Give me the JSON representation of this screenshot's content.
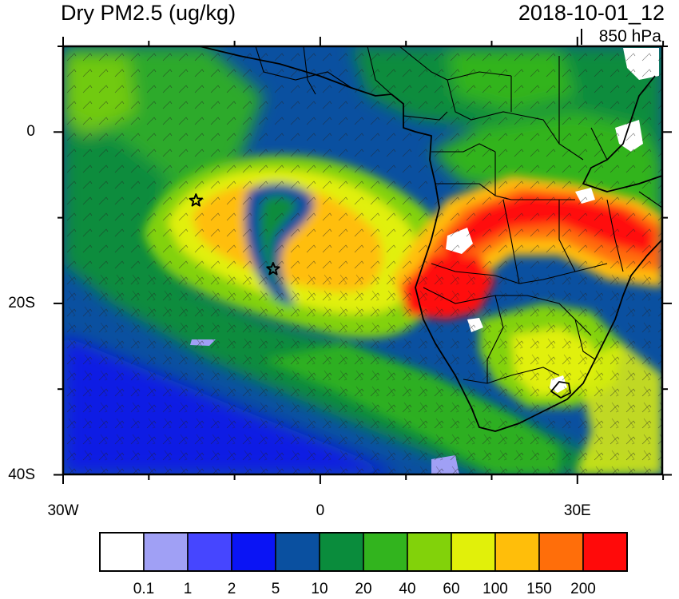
{
  "header": {
    "title": "Dry PM2.5 (ug/kg)",
    "datetime": "2018-10-01_12",
    "level": "850 hPa"
  },
  "axes": {
    "lat_labels": [
      {
        "text": "0",
        "lat": 0
      },
      {
        "text": "20S",
        "lat": -20
      },
      {
        "text": "40S",
        "lat": -40
      }
    ],
    "lon_labels": [
      {
        "text": "30W",
        "lon": -30
      },
      {
        "text": "0",
        "lon": 0
      },
      {
        "text": "30E",
        "lon": 30
      }
    ]
  },
  "markers": [
    {
      "name": "star-marker-1",
      "lon": -14.5,
      "lat": -8
    },
    {
      "name": "star-marker-2",
      "lon": -5.5,
      "lat": -16
    }
  ],
  "colorbar": {
    "colors": [
      "#ffffff",
      "#a0a0f5",
      "#4646ff",
      "#0a14f5",
      "#0a50a0",
      "#0a8c3c",
      "#32b41e",
      "#82d20a",
      "#e1f00a",
      "#ffbe0a",
      "#ff6e0a",
      "#ff0a0a"
    ],
    "labels": [
      "0.1",
      "1",
      "2",
      "5",
      "10",
      "20",
      "40",
      "60",
      "100",
      "150",
      "200"
    ]
  }
}
